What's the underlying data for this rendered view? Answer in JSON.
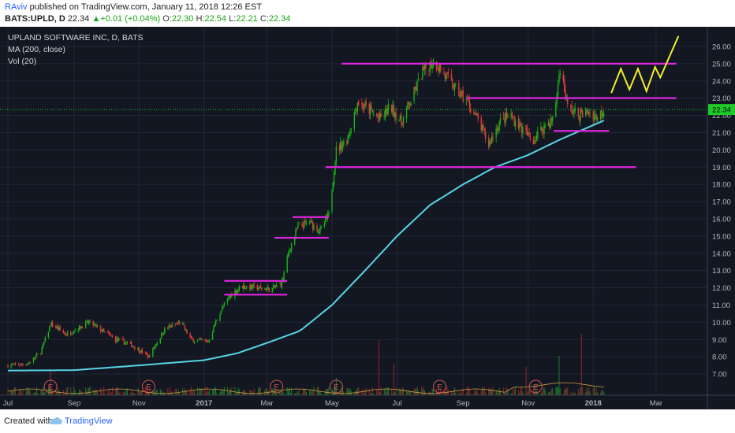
{
  "header": {
    "author": "RAviv",
    "published": " published on TradingView.com, January 11, 2018 12:26 EST",
    "symbol": "BATS:UPLD, D",
    "price": "22.34",
    "change": "+0.01 (+0.04%)",
    "open_label": "O:",
    "open": "22.30",
    "high_label": "H:",
    "high": "22.54",
    "low_label": "L:",
    "low": "22.21",
    "close_label": "C:",
    "close": "22.34",
    "up_arrow": "▲"
  },
  "legend": {
    "title": "UPLAND SOFTWARE INC, D, BATS",
    "ma": "MA (200, close)",
    "vol": "Vol (20)"
  },
  "footer": {
    "created_with": "Created with",
    "brand": "TradingView"
  },
  "colors": {
    "background": "#131722",
    "up": "#26a69a",
    "up_candle": "#19b319",
    "down_candle": "#e03b3b",
    "ma": "#56d4e6",
    "support": "#e025e0",
    "projection": "#f0f02a",
    "last_price": "#1ecb28"
  },
  "chart_data": {
    "type": "candlestick",
    "symbol": "BATS:UPLD",
    "interval": "D",
    "ylim": [
      6.5,
      26.5
    ],
    "y_ticks": [
      "7.00",
      "8.00",
      "9.00",
      "10.00",
      "11.00",
      "12.00",
      "13.00",
      "14.00",
      "15.00",
      "16.00",
      "17.00",
      "18.00",
      "19.00",
      "20.00",
      "21.00",
      "22.00",
      "23.00",
      "24.00",
      "25.00",
      "26.00"
    ],
    "x_ticks": [
      "Jul",
      "Sep",
      "Nov",
      "2017",
      "Mar",
      "May",
      "Jul",
      "Sep",
      "Nov",
      "2018",
      "Mar"
    ],
    "last_price_label": "22.34",
    "price_path": [
      [
        "2016-07-01",
        7.5
      ],
      [
        "2016-07-20",
        7.6
      ],
      [
        "2016-08-01",
        8.3
      ],
      [
        "2016-08-10",
        9.9
      ],
      [
        "2016-08-25",
        9.3
      ],
      [
        "2016-09-15",
        10.0
      ],
      [
        "2016-10-10",
        9.0
      ],
      [
        "2016-10-25",
        8.7
      ],
      [
        "2016-11-10",
        8.0
      ],
      [
        "2016-11-25",
        9.6
      ],
      [
        "2016-12-10",
        10.0
      ],
      [
        "2016-12-20",
        9.0
      ],
      [
        "2017-01-05",
        8.9
      ],
      [
        "2017-01-15",
        10.5
      ],
      [
        "2017-01-25",
        11.5
      ],
      [
        "2017-02-05",
        12.1
      ],
      [
        "2017-02-20",
        12.0
      ],
      [
        "2017-03-05",
        11.9
      ],
      [
        "2017-03-15",
        12.3
      ],
      [
        "2017-03-22",
        14.2
      ],
      [
        "2017-03-30",
        15.5
      ],
      [
        "2017-04-10",
        15.8
      ],
      [
        "2017-04-20",
        15.3
      ],
      [
        "2017-04-28",
        16.2
      ],
      [
        "2017-05-05",
        20.0
      ],
      [
        "2017-05-15",
        20.6
      ],
      [
        "2017-05-25",
        22.8
      ],
      [
        "2017-06-05",
        22.3
      ],
      [
        "2017-06-15",
        21.8
      ],
      [
        "2017-06-25",
        22.5
      ],
      [
        "2017-07-05",
        21.6
      ],
      [
        "2017-07-15",
        23.0
      ],
      [
        "2017-07-25",
        24.5
      ],
      [
        "2017-08-05",
        25.2
      ],
      [
        "2017-08-15",
        24.3
      ],
      [
        "2017-08-25",
        23.5
      ],
      [
        "2017-09-05",
        22.8
      ],
      [
        "2017-09-15",
        21.7
      ],
      [
        "2017-09-25",
        20.3
      ],
      [
        "2017-10-05",
        21.6
      ],
      [
        "2017-10-15",
        22.0
      ],
      [
        "2017-10-25",
        21.3
      ],
      [
        "2017-11-05",
        20.5
      ],
      [
        "2017-11-15",
        21.3
      ],
      [
        "2017-11-25",
        21.8
      ],
      [
        "2017-12-01",
        24.8
      ],
      [
        "2017-12-08",
        22.5
      ],
      [
        "2017-12-18",
        22.0
      ],
      [
        "2017-12-28",
        22.2
      ],
      [
        "2018-01-05",
        21.9
      ],
      [
        "2018-01-11",
        22.34
      ]
    ],
    "ma200": [
      [
        "2016-07-01",
        7.2
      ],
      [
        "2016-09-01",
        7.22
      ],
      [
        "2016-11-01",
        7.5
      ],
      [
        "2017-01-01",
        7.8
      ],
      [
        "2017-02-01",
        8.2
      ],
      [
        "2017-03-01",
        8.8
      ],
      [
        "2017-04-01",
        9.5
      ],
      [
        "2017-05-01",
        11.0
      ],
      [
        "2017-06-01",
        13.0
      ],
      [
        "2017-07-01",
        15.0
      ],
      [
        "2017-08-01",
        16.8
      ],
      [
        "2017-09-01",
        18.0
      ],
      [
        "2017-10-01",
        19.0
      ],
      [
        "2017-11-01",
        19.7
      ],
      [
        "2017-12-01",
        20.6
      ],
      [
        "2018-01-11",
        21.7
      ]
    ],
    "horizontal_levels": [
      {
        "y": 25.0,
        "from": "2017-05-10",
        "to": "2018-03-20"
      },
      {
        "y": 23.0,
        "from": "2017-09-05",
        "to": "2018-03-20"
      },
      {
        "y": 21.1,
        "from": "2017-11-25",
        "to": "2018-01-16"
      },
      {
        "y": 19.0,
        "from": "2017-04-25",
        "to": "2018-02-10"
      },
      {
        "y": 16.1,
        "from": "2017-03-25",
        "to": "2017-04-28"
      },
      {
        "y": 14.9,
        "from": "2017-03-08",
        "to": "2017-04-28"
      },
      {
        "y": 12.4,
        "from": "2017-01-20",
        "to": "2017-03-20"
      },
      {
        "y": 11.6,
        "from": "2017-01-20",
        "to": "2017-03-20"
      }
    ],
    "projection": [
      [
        "2018-01-18",
        23.3
      ],
      [
        "2018-01-27",
        24.7
      ],
      [
        "2018-02-04",
        23.5
      ],
      [
        "2018-02-12",
        24.7
      ],
      [
        "2018-02-20",
        23.4
      ],
      [
        "2018-02-28",
        24.8
      ],
      [
        "2018-03-05",
        24.2
      ],
      [
        "2018-03-22",
        26.6
      ]
    ],
    "earnings_markers": [
      "E",
      "E",
      "E",
      "E",
      "E",
      "E"
    ],
    "earnings_dates": [
      "2016-08-10",
      "2016-11-10",
      "2017-03-10",
      "2017-05-05",
      "2017-08-10",
      "2017-11-08"
    ]
  }
}
